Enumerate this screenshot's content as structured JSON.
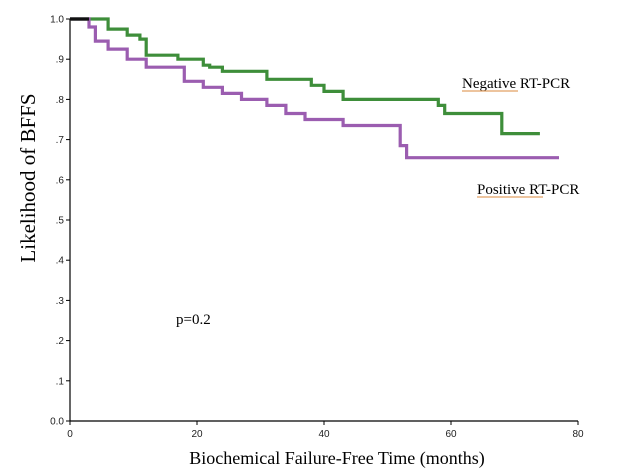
{
  "chart_data": {
    "type": "line",
    "xlabel": "Biochemical Failure-Free Time (months)",
    "ylabel": "Likelihood of BFFS",
    "xlim": [
      0,
      80
    ],
    "ylim": [
      0,
      1.0
    ],
    "x_ticks": [
      "0",
      "20",
      "40",
      "60",
      "80"
    ],
    "y_ticks": [
      "0.0",
      ".1",
      ".2",
      ".3",
      ".4",
      ".5",
      ".6",
      ".7",
      ".8",
      ".9",
      "1.0"
    ],
    "grid": false,
    "annotations": {
      "p_value": "p=0.2"
    },
    "series": [
      {
        "name": "Negative RT-PCR",
        "color": "#3e8e3a",
        "points": [
          [
            0,
            1.0
          ],
          [
            6,
            1.0
          ],
          [
            6,
            0.975
          ],
          [
            9,
            0.975
          ],
          [
            9,
            0.96
          ],
          [
            11,
            0.96
          ],
          [
            11,
            0.95
          ],
          [
            12,
            0.95
          ],
          [
            12,
            0.91
          ],
          [
            17,
            0.91
          ],
          [
            17,
            0.9
          ],
          [
            21,
            0.9
          ],
          [
            21,
            0.885
          ],
          [
            22,
            0.885
          ],
          [
            22,
            0.88
          ],
          [
            24,
            0.88
          ],
          [
            24,
            0.87
          ],
          [
            31,
            0.87
          ],
          [
            31,
            0.85
          ],
          [
            38,
            0.85
          ],
          [
            38,
            0.835
          ],
          [
            40,
            0.835
          ],
          [
            40,
            0.82
          ],
          [
            43,
            0.82
          ],
          [
            43,
            0.8
          ],
          [
            58,
            0.8
          ],
          [
            58,
            0.785
          ],
          [
            59,
            0.785
          ],
          [
            59,
            0.765
          ],
          [
            68,
            0.765
          ],
          [
            68,
            0.715
          ],
          [
            74,
            0.715
          ]
        ]
      },
      {
        "name": "Positive RT-PCR",
        "color": "#9b5db0",
        "points": [
          [
            0,
            1.0
          ],
          [
            3,
            1.0
          ],
          [
            3,
            0.98
          ],
          [
            4,
            0.98
          ],
          [
            4,
            0.945
          ],
          [
            6,
            0.945
          ],
          [
            6,
            0.925
          ],
          [
            9,
            0.925
          ],
          [
            9,
            0.9
          ],
          [
            12,
            0.9
          ],
          [
            12,
            0.88
          ],
          [
            18,
            0.88
          ],
          [
            18,
            0.845
          ],
          [
            21,
            0.845
          ],
          [
            21,
            0.83
          ],
          [
            24,
            0.83
          ],
          [
            24,
            0.815
          ],
          [
            27,
            0.815
          ],
          [
            27,
            0.8
          ],
          [
            31,
            0.8
          ],
          [
            31,
            0.785
          ],
          [
            34,
            0.785
          ],
          [
            34,
            0.765
          ],
          [
            37,
            0.765
          ],
          [
            37,
            0.75
          ],
          [
            43,
            0.75
          ],
          [
            43,
            0.735
          ],
          [
            52,
            0.735
          ],
          [
            52,
            0.685
          ],
          [
            53,
            0.685
          ],
          [
            53,
            0.655
          ],
          [
            77,
            0.655
          ]
        ]
      }
    ]
  }
}
